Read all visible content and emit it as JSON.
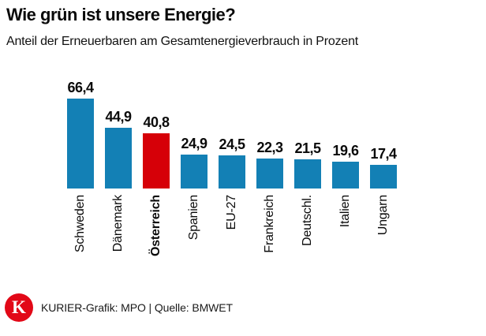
{
  "header": {
    "title": "Wie grün ist unsere Energie?",
    "subtitle": "Anteil der Erneuerbaren am Gesamtenergieverbrauch in Prozent"
  },
  "chart_data": {
    "type": "bar",
    "title": "Wie grün ist unsere Energie?",
    "subtitle": "Anteil der Erneuerbaren am Gesamtenergieverbrauch in Prozent",
    "categories": [
      "Schweden",
      "Dänemark",
      "Österreich",
      "Spanien",
      "EU-27",
      "Frankreich",
      "Deutschl.",
      "Italien",
      "Ungarn"
    ],
    "values": [
      66.4,
      44.9,
      40.8,
      24.9,
      24.5,
      22.3,
      21.5,
      19.6,
      17.4
    ],
    "value_labels": [
      "66,4",
      "44,9",
      "40,8",
      "24,9",
      "24,5",
      "22,3",
      "21,5",
      "19,6",
      "17,4"
    ],
    "highlight_category": "Österreich",
    "xlabel": "",
    "ylabel": "Prozent",
    "ylim": [
      0,
      70
    ],
    "grid": false,
    "legend": false,
    "x_tick_label_rotation": 90,
    "colors": {
      "bar": "#1380b5",
      "highlight_bar": "#d60008"
    }
  },
  "footer": {
    "logo_letter": "K",
    "logo_color": "#e20817",
    "credit": "KURIER-Grafik: MPO | Quelle: BMWET"
  }
}
